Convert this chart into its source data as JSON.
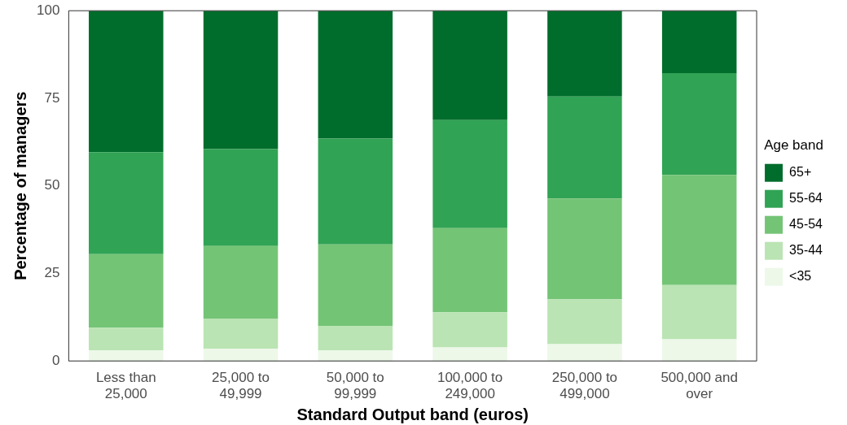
{
  "chart_data": {
    "type": "bar",
    "stacked": true,
    "xlabel": "Standard Output band (euros)",
    "ylabel": "Percentage of managers",
    "legend_title": "Age band",
    "legend": "right",
    "categories": [
      "Less than 25,000",
      "25,000 to 49,999",
      "50,000 to 99,999",
      "100,000 to 249,000",
      "250,000 to 499,000",
      "500,000 and over"
    ],
    "ylim": [
      0,
      100
    ],
    "yticks": [
      0,
      25,
      50,
      75,
      100
    ],
    "grid": false,
    "series": [
      {
        "name": "<35",
        "color": "#edf8e9",
        "values": [
          3.0,
          3.5,
          3.0,
          3.9,
          4.8,
          6.2
        ]
      },
      {
        "name": "35-44",
        "color": "#bae4b3",
        "values": [
          6.5,
          8.5,
          7.0,
          10.0,
          12.8,
          15.5
        ]
      },
      {
        "name": "45-54",
        "color": "#74c476",
        "values": [
          21.0,
          20.8,
          23.3,
          24.0,
          28.8,
          31.4
        ]
      },
      {
        "name": "55-64",
        "color": "#31a354",
        "values": [
          29.1,
          27.7,
          30.2,
          30.9,
          29.1,
          29.1
        ]
      },
      {
        "name": "65+",
        "color": "#006d2c",
        "values": [
          40.4,
          39.5,
          36.5,
          31.2,
          24.5,
          17.8
        ]
      }
    ]
  }
}
